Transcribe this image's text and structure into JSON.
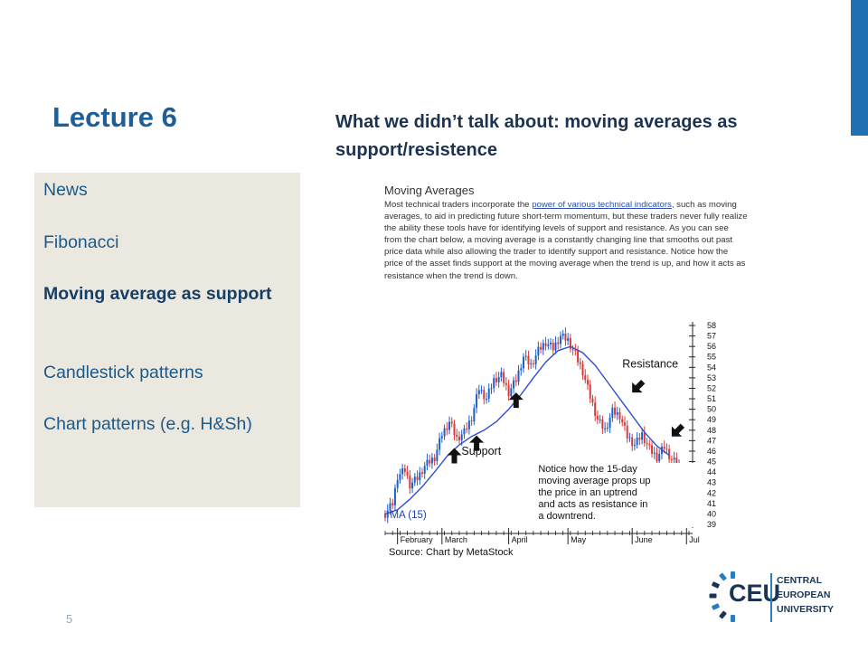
{
  "slide": {
    "title": "Lecture 6",
    "subtitle": "What we didn’t talk about: moving averages as support/resistence",
    "page_number": "5"
  },
  "sidebar": {
    "topics": [
      {
        "label": "News",
        "active": false
      },
      {
        "label": "Fibonacci",
        "active": false
      },
      {
        "label": "Moving average as support",
        "active": true
      },
      {
        "label": "Candlestick patterns",
        "active": false
      },
      {
        "label": "Chart patterns (e.g. H&Sh)",
        "active": false
      }
    ]
  },
  "article": {
    "heading": "Moving Averages",
    "body_before_link": "Most technical traders incorporate the ",
    "link_text": "power of various technical indicators",
    "body_after_link": ", such as moving averages, to aid in predicting future short-term momentum, but these traders never fully realize the ability these tools have for identifying levels of support and resistance. As you can see from the chart below, a moving average is a constantly changing line that smooths out past price data while also allowing the trader to identify support and resistance. Notice how the price of the asset finds support at the moving average when the trend is up, and how it acts as resistance when the trend is down."
  },
  "logo": {
    "mark": "CEU",
    "lines": [
      "CENTRAL",
      "EUROPEAN",
      "UNIVERSITY"
    ]
  },
  "colors": {
    "accent": "#1f6fb2",
    "sidebar_bg": "#ebe8df",
    "title": "#1f5f96",
    "candle_up": "#1f5fc8",
    "candle_down": "#d83a3a",
    "ma_line": "#2f4fd0"
  },
  "chart_data": {
    "type": "line",
    "title": "",
    "ylabel": "",
    "xlabel": "",
    "ylim": [
      39,
      58
    ],
    "y_ticks": [
      39,
      40,
      41,
      42,
      43,
      44,
      45,
      46,
      47,
      48,
      49,
      50,
      51,
      52,
      53,
      54,
      55,
      56,
      57,
      58
    ],
    "x_month_labels": [
      "February",
      "March",
      "April",
      "May",
      "June",
      "Jul"
    ],
    "x_month_start_day": [
      5,
      23,
      50,
      74,
      100,
      122
    ],
    "days": 123,
    "series": [
      {
        "name": "MA (15)",
        "x": [
          0,
          5,
          10,
          15,
          20,
          25,
          30,
          35,
          40,
          45,
          50,
          55,
          60,
          65,
          70,
          75,
          80,
          85,
          90,
          95,
          100,
          105,
          110,
          115
        ],
        "y": [
          40.0,
          40.4,
          41.4,
          42.6,
          44.0,
          45.5,
          46.6,
          47.4,
          48.0,
          48.8,
          50.0,
          51.4,
          53.0,
          54.5,
          55.6,
          56.0,
          55.4,
          54.2,
          52.6,
          51.0,
          49.4,
          47.8,
          46.5,
          45.6
        ]
      },
      {
        "name": "Price",
        "x": [
          0,
          3,
          5,
          8,
          10,
          13,
          16,
          20,
          23,
          26,
          29,
          32,
          35,
          38,
          41,
          44,
          47,
          50,
          53,
          56,
          59,
          62,
          65,
          68,
          71,
          74,
          77,
          80,
          83,
          86,
          89,
          92,
          95,
          98,
          101,
          104,
          107,
          110,
          113,
          116,
          119
        ],
        "y": [
          40.0,
          41.0,
          43.6,
          44.2,
          42.8,
          43.4,
          44.6,
          45.4,
          47.6,
          48.8,
          47.2,
          47.8,
          49.2,
          52.0,
          51.0,
          52.8,
          53.2,
          51.6,
          52.8,
          55.0,
          54.2,
          55.6,
          56.4,
          55.8,
          57.0,
          56.6,
          55.2,
          53.6,
          51.2,
          49.0,
          48.0,
          49.8,
          49.4,
          47.4,
          46.6,
          47.6,
          46.2,
          45.4,
          46.4,
          45.2,
          44.6
        ]
      }
    ],
    "annotations": [
      {
        "text": "Resistance",
        "x": 96,
        "y": 54.0
      },
      {
        "text": "Support",
        "x": 32,
        "y": 46.0
      },
      {
        "text": "Notice how the 15-day moving average props up the price in an uptrend and acts as resistance in a downtrend.",
        "x": 62,
        "y": 44.0
      }
    ],
    "source": "Source: Chart by MetaStock",
    "ma_label": "MA (15)"
  }
}
